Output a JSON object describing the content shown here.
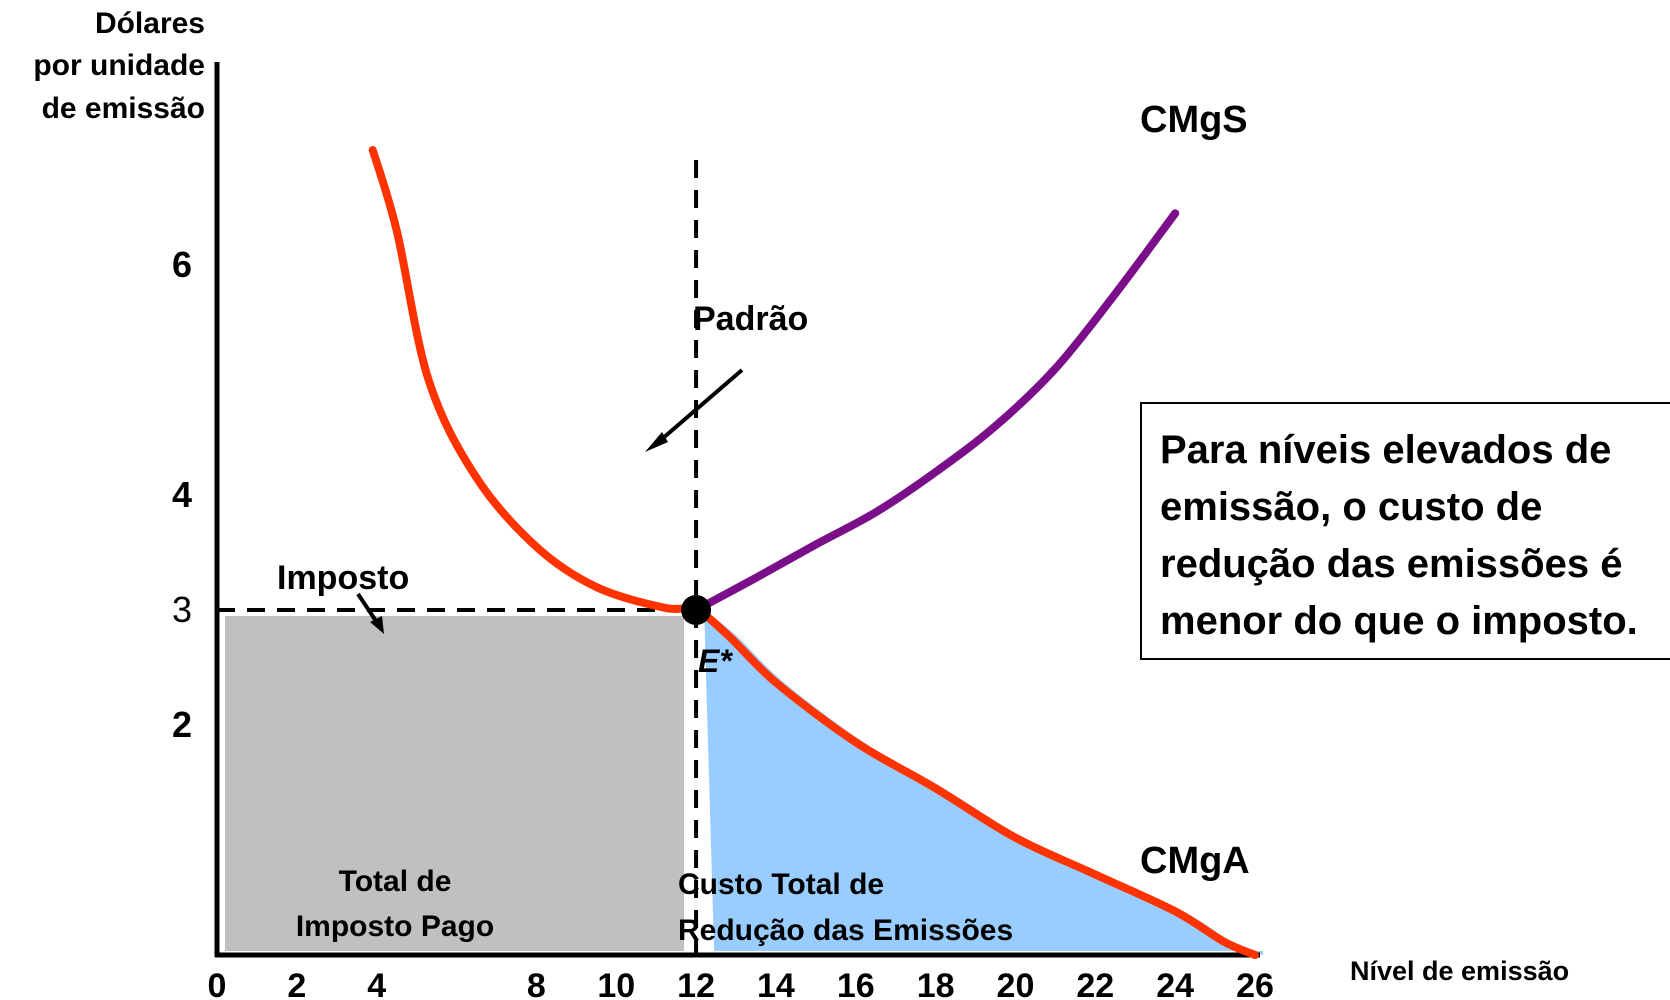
{
  "chart_data": {
    "type": "line",
    "ylabel_lines": [
      "Dólares",
      "por unidade",
      "de emissão"
    ],
    "xlabel": "Nível de emissão",
    "x_ticks": [
      0,
      2,
      4,
      8,
      10,
      12,
      14,
      16,
      18,
      20,
      22,
      24,
      26
    ],
    "y_ticks": [
      {
        "value": 6,
        "label": "6",
        "bold": true
      },
      {
        "value": 4,
        "label": "4",
        "bold": true
      },
      {
        "value": 3,
        "label": "3",
        "bold": false
      },
      {
        "value": 2,
        "label": "2",
        "bold": true
      }
    ],
    "xlim": [
      0,
      26
    ],
    "ylim": [
      0,
      7.4
    ],
    "series": [
      {
        "name": "CMgA",
        "color": "#ff3300",
        "points": [
          [
            3.9,
            7.0
          ],
          [
            4.5,
            6.3
          ],
          [
            5.3,
            5.0
          ],
          [
            6.5,
            4.15
          ],
          [
            8.0,
            3.55
          ],
          [
            9.5,
            3.2
          ],
          [
            11.2,
            3.02
          ],
          [
            12.0,
            3.0
          ],
          [
            12.8,
            2.78
          ],
          [
            14.0,
            2.37
          ],
          [
            16.0,
            1.85
          ],
          [
            18.0,
            1.45
          ],
          [
            20.0,
            1.02
          ],
          [
            22.0,
            0.7
          ],
          [
            24.0,
            0.38
          ],
          [
            25.2,
            0.12
          ],
          [
            26.0,
            0.0
          ]
        ]
      },
      {
        "name": "CMgS",
        "color": "#7b0f8a",
        "points": [
          [
            12.0,
            3.0
          ],
          [
            13.5,
            3.28
          ],
          [
            15.0,
            3.57
          ],
          [
            16.5,
            3.85
          ],
          [
            18.0,
            4.2
          ],
          [
            19.5,
            4.6
          ],
          [
            21.0,
            5.1
          ],
          [
            22.5,
            5.75
          ],
          [
            24.0,
            6.45
          ]
        ]
      }
    ],
    "standard_x": 12,
    "tax_y": 3,
    "equilibrium": {
      "x": 12,
      "y": 3,
      "label": "E*"
    },
    "areas": [
      {
        "name": "tax_paid",
        "color": "#c0c0c0",
        "label_lines": [
          "Total de",
          "Imposto Pago"
        ]
      },
      {
        "name": "abatement_cost",
        "color": "#99ccff",
        "label_lines": [
          "Custo Total de",
          "Redução das Emissões"
        ]
      }
    ],
    "annotations": [
      {
        "text": "Padrão",
        "arrow": true
      },
      {
        "text": "Imposto",
        "arrow": true
      }
    ]
  },
  "curve_labels": {
    "cmgs": "CMgS",
    "cmga": "CMgA",
    "equilibrium": "E*",
    "padrao": "Padrão",
    "imposto": "Imposto"
  },
  "note": {
    "lines": [
      "Para níveis elevados de",
      "emissão, o custo de",
      "redução das emissões é",
      "menor do que o imposto."
    ]
  }
}
